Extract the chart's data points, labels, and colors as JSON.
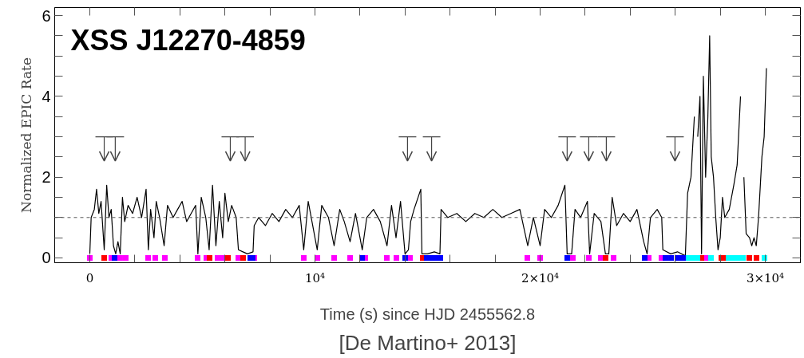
{
  "chart_data": {
    "type": "line",
    "title": "XSS J12270-4859",
    "xlabel": "Time (s) since HJD 2455562.8",
    "ylabel": "Normalized EPIC Rate",
    "annotations": [
      "[De Martino+ 2013]"
    ],
    "xlim": [
      -1560,
      31560
    ],
    "ylim": [
      -0.12,
      6.2
    ],
    "xticks": [
      {
        "value": 0,
        "label": "0"
      },
      {
        "value": 2000,
        "label": null
      },
      {
        "value": 4000,
        "label": null
      },
      {
        "value": 6000,
        "label": null
      },
      {
        "value": 8000,
        "label": null
      },
      {
        "value": 10000,
        "label": "10⁴"
      },
      {
        "value": 12000,
        "label": null
      },
      {
        "value": 14000,
        "label": null
      },
      {
        "value": 16000,
        "label": null
      },
      {
        "value": 18000,
        "label": null
      },
      {
        "value": 20000,
        "label": "2×10⁴"
      },
      {
        "value": 22000,
        "label": null
      },
      {
        "value": 24000,
        "label": null
      },
      {
        "value": 26000,
        "label": null
      },
      {
        "value": 28000,
        "label": null
      },
      {
        "value": 30000,
        "label": "3×10⁴"
      }
    ],
    "yticks": [
      0,
      {
        "value": 0.5,
        "label": null
      },
      {
        "value": 1,
        "label": null
      },
      {
        "value": 1.5,
        "label": null
      },
      2,
      {
        "value": 2.5,
        "label": null
      },
      {
        "value": 3,
        "label": null
      },
      {
        "value": 3.5,
        "label": null
      },
      4,
      {
        "value": 4.5,
        "label": null
      },
      {
        "value": 5,
        "label": null
      },
      {
        "value": 5.5,
        "label": null
      },
      6
    ],
    "tick_labels": "xy",
    "grid": false,
    "ref_lines": [
      {
        "axis": "y",
        "value": 1,
        "label": null,
        "color": "#555555",
        "line_style": "dashed"
      }
    ],
    "series": [
      {
        "color": "#000000",
        "marker": "none",
        "line_style": "solid",
        "x": [
          0,
          60,
          200,
          300,
          400,
          500,
          640,
          750,
          850,
          950,
          1050,
          1150,
          1250,
          1350,
          1450,
          1550,
          1700,
          1900,
          2100,
          2300,
          2500,
          2600,
          2700,
          2850,
          2950,
          3100,
          3300,
          3450,
          3700,
          3900,
          4100,
          4300,
          4500,
          4700,
          4800,
          4950,
          5150,
          5300,
          5450,
          5600,
          5750,
          5900,
          6000,
          6150,
          6300,
          6500,
          6600,
          6800,
          7000,
          7250,
          7300,
          7500,
          7800,
          8100,
          8400,
          8700,
          9000,
          9300,
          9500,
          9700,
          9900,
          10100,
          10300,
          10600,
          10850,
          11100,
          11300,
          11560,
          11800,
          12100,
          12300,
          12600,
          12900,
          13200,
          13400,
          13600,
          13800,
          14000,
          14150,
          14250,
          14400,
          14700,
          14750,
          15000,
          15300,
          15550,
          15600,
          15900,
          16300,
          16700,
          17100,
          17500,
          17900,
          18300,
          18700,
          19100,
          19450,
          19700,
          20000,
          20200,
          20500,
          20800,
          21100,
          21200,
          21400,
          21550,
          21800,
          22100,
          22200,
          22400,
          22700,
          22900,
          23050,
          23200,
          23400,
          23700,
          24000,
          24300,
          24600,
          24750,
          24900,
          25200,
          25400,
          25450,
          25800,
          26100,
          26450,
          26550,
          26700,
          26850,
          26950,
          27000,
          27100,
          27170,
          27250,
          27350,
          27450,
          27530,
          27600,
          27700,
          27800,
          27900,
          28000,
          28100,
          28200,
          28400,
          28600,
          28750,
          28900,
          28950,
          29050,
          29150,
          29300,
          29400,
          29500,
          29600,
          29700,
          29850,
          29950,
          30050
        ],
        "values": [
          0.1,
          1.0,
          1.2,
          1.7,
          1.1,
          1.4,
          0.2,
          1.8,
          1.0,
          1.2,
          0.3,
          0.1,
          0.4,
          0.1,
          1.5,
          0.9,
          1.3,
          1.1,
          1.5,
          1.0,
          1.7,
          0.2,
          1.2,
          0.5,
          1.4,
          1.0,
          0.3,
          1.3,
          1.0,
          1.2,
          1.4,
          0.9,
          1.1,
          1.3,
          0.1,
          1.5,
          1.0,
          0.2,
          1.8,
          0.3,
          1.4,
          0.5,
          1.6,
          0.9,
          1.3,
          1.0,
          0.2,
          0.15,
          0.1,
          0.15,
          0.8,
          1.0,
          0.8,
          1.1,
          0.9,
          1.2,
          1.0,
          1.3,
          0.2,
          1.4,
          0.8,
          0.2,
          1.3,
          1.0,
          0.3,
          1.2,
          0.9,
          0.4,
          1.1,
          0.2,
          1.0,
          1.2,
          0.9,
          0.3,
          1.3,
          0.5,
          1.4,
          0.1,
          0.2,
          0.9,
          1.2,
          1.7,
          0.1,
          0.1,
          0.15,
          0.1,
          1.2,
          1.0,
          1.1,
          0.9,
          1.1,
          1.0,
          1.2,
          1.0,
          1.1,
          1.2,
          0.3,
          1.0,
          0.3,
          1.2,
          1.0,
          1.3,
          1.8,
          0.1,
          0.1,
          1.2,
          1.0,
          1.4,
          0.1,
          1.1,
          0.9,
          0.1,
          0.1,
          1.5,
          0.8,
          1.1,
          0.9,
          1.2,
          0.4,
          0.1,
          1.0,
          1.2,
          1.0,
          0.2,
          0.1,
          0.15,
          0.05,
          1.6,
          2.0,
          3.5,
          null,
          3.0,
          4.0,
          0.1,
          4.5,
          2.0,
          3.5,
          5.5,
          2.5,
          2.0,
          1.0,
          0.2,
          0.5,
          1.5,
          1.0,
          1.2,
          1.8,
          2.3,
          4.0,
          null,
          2.0,
          0.6,
          0.5,
          0.3,
          0.5,
          0.3,
          1.0,
          2.5,
          3.0,
          4.7
        ]
      },
      {
        "type": "scatter",
        "color": "#444444",
        "x": [
          640,
          1130,
          6240,
          6900,
          14110,
          15180,
          21200,
          22160,
          22940,
          25990
        ],
        "values": [
          2.5,
          2.5,
          2.5,
          2.5,
          2.5,
          2.5,
          2.5,
          2.5,
          2.5,
          2.5
        ],
        "errors": [
          [
            2.4,
            3
          ],
          [
            2.4,
            3
          ],
          [
            2.4,
            3
          ],
          [
            2.4,
            3
          ],
          [
            2.4,
            3
          ],
          [
            2.4,
            3
          ],
          [
            2.4,
            3
          ],
          [
            2.4,
            3
          ],
          [
            2.4,
            3
          ],
          [
            2.4,
            3
          ]
        ]
      },
      {
        "type": "scatter",
        "color": "#ff00ff",
        "marker": "square",
        "x": [
          0,
          957,
          1347,
          1596,
          2589,
          2908,
          3333,
          4787,
          5177,
          5674,
          5851,
          6596,
          7305,
          9503,
          10106,
          10851,
          11560,
          12234,
          13191,
          13617,
          14220,
          19432,
          20000,
          21453,
          22163,
          22694,
          23262,
          24822,
          25389,
          27375
        ],
        "values": [
          0,
          0,
          0,
          0,
          0,
          0,
          0,
          0,
          0,
          0,
          0,
          0,
          0,
          0,
          0,
          0,
          0,
          0,
          0,
          0,
          0,
          0,
          0,
          0,
          0,
          0,
          0,
          0,
          0,
          0
        ]
      },
      {
        "type": "scatter",
        "color": "#ff0000",
        "marker": "square",
        "x": [
          638,
          5319,
          6135,
          6808,
          14787,
          22907,
          27163,
          28050,
          28227,
          29290,
          29610
        ],
        "values": [
          0,
          0,
          0,
          0,
          0,
          0,
          0,
          0,
          0,
          0,
          0
        ]
      },
      {
        "type": "scatter",
        "color": "#0000ff",
        "marker": "square",
        "x": [
          1099,
          7128,
          7234,
          12092,
          14007,
          14965,
          15177,
          15390,
          15567,
          21205,
          24645,
          25567,
          25816,
          26099,
          26347
        ],
        "values": [
          0,
          0,
          0,
          0,
          0,
          0,
          0,
          0,
          0,
          0,
          0,
          0,
          0,
          0,
          0
        ]
      },
      {
        "type": "scatter",
        "color": "#00ffff",
        "marker": "square",
        "x": [
          26595,
          26808,
          26986,
          27589,
          28369,
          28582,
          28794,
          29007,
          29964
        ],
        "values": [
          0,
          0,
          0,
          0,
          0,
          0,
          0,
          0,
          0
        ]
      }
    ]
  }
}
